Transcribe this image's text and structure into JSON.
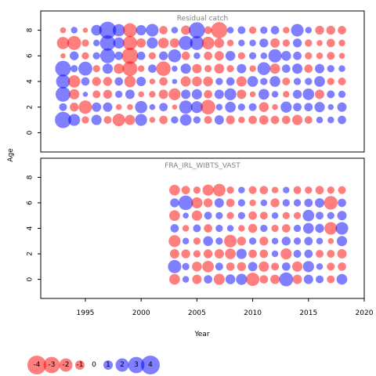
{
  "chart_data": {
    "type": "bubble",
    "xlabel": "Year",
    "ylabel": "Age",
    "xlim": [
      1991,
      2020
    ],
    "ylim": [
      -1.5,
      9.5
    ],
    "x_ticks": [
      "1995",
      "2000",
      "2005",
      "2010",
      "2015",
      "2020"
    ],
    "y_ticks": [
      "0",
      "2",
      "4",
      "6",
      "8"
    ],
    "colors": {
      "positive": "#0000ff",
      "negative": "#ff0000",
      "alpha": 0.5
    },
    "panels": [
      {
        "title": "Residual catch",
        "years": [
          1993,
          1994,
          1995,
          1996,
          1997,
          1998,
          1999,
          2000,
          2001,
          2002,
          2003,
          2004,
          2005,
          2006,
          2007,
          2008,
          2009,
          2010,
          2011,
          2012,
          2013,
          2014,
          2015,
          2016,
          2017,
          2018
        ],
        "ages": [
          1,
          2,
          3,
          4,
          5,
          6,
          7,
          8
        ],
        "residuals": [
          [
            3.0,
            1.6,
            -0.6,
            1.2,
            -0.7,
            -1.8,
            -1.2,
            1.6,
            -0.4,
            -0.8,
            0.6,
            1.5,
            0.6,
            -0.7,
            1.0,
            -0.9,
            -0.5,
            -0.8,
            -1.0,
            -0.8,
            -0.8,
            -1.2,
            -0.7,
            0.5,
            0.5,
            0.8
          ],
          [
            0.7,
            -0.9,
            -2.0,
            1.0,
            1.0,
            -0.4,
            -0.4,
            1.7,
            0.4,
            0.8,
            -0.3,
            2.0,
            1.6,
            -2.4,
            0.5,
            1.3,
            0.6,
            0.7,
            -1.1,
            -0.4,
            1.4,
            0.8,
            0.8,
            1.2,
            0.4,
            1.0
          ],
          [
            2.5,
            -1.2,
            0.3,
            -0.7,
            -0.9,
            0.6,
            1.0,
            -0.4,
            -0.5,
            -1.0,
            -1.6,
            1.0,
            1.2,
            -0.8,
            1.0,
            1.6,
            -1.0,
            -0.4,
            1.3,
            0.5,
            -0.5,
            0.9,
            1.5,
            -1.0,
            0.7,
            0.6
          ],
          [
            2.2,
            -1.7,
            0.8,
            -0.9,
            -0.9,
            0.8,
            -1.5,
            1.0,
            -0.4,
            -0.8,
            0.3,
            -1.2,
            -1.1,
            -1.1,
            0.6,
            0.8,
            -1.2,
            1.3,
            0.6,
            1.3,
            -0.7,
            0.6,
            0.6,
            1.3,
            -0.6,
            -0.7
          ],
          [
            2.8,
            0.6,
            2.2,
            -0.6,
            1.2,
            -1.2,
            -2.5,
            -0.5,
            0.8,
            -2.4,
            0.4,
            1.2,
            -1.0,
            -0.6,
            -1.1,
            -0.6,
            1.0,
            -0.5,
            1.9,
            -1.2,
            0.8,
            1.2,
            -0.8,
            1.0,
            0.6,
            0.5
          ],
          [
            -0.3,
            0.9,
            -0.6,
            0.6,
            2.5,
            0.8,
            -3.0,
            0.8,
            -0.6,
            0.9,
            1.9,
            -0.8,
            0.5,
            -0.8,
            -1.0,
            1.1,
            -0.6,
            0.6,
            0.5,
            2.0,
            1.1,
            0.8,
            -0.6,
            -0.5,
            -0.7,
            -0.4
          ],
          [
            -1.7,
            -2.2,
            -0.6,
            0.5,
            2.7,
            1.4,
            -2.3,
            -1.0,
            1.4,
            -1.3,
            -1.0,
            2.2,
            2.2,
            -1.8,
            -1.1,
            -0.5,
            0.5,
            0.5,
            0.9,
            -1.0,
            -0.6,
            0.9,
            -0.6,
            -0.4,
            -0.8,
            -0.5
          ],
          [
            -0.4,
            0.5,
            -0.3,
            1.3,
            3.3,
            1.7,
            -2.2,
            1.2,
            1.8,
            -0.8,
            0.5,
            -1.0,
            2.9,
            -0.7,
            -3.0,
            0.5,
            0.7,
            -0.6,
            0.6,
            0.8,
            -0.5,
            1.8,
            0.5,
            -0.9,
            -0.9,
            -0.8
          ]
        ]
      },
      {
        "title": "FRA_IRL_WIBTS_VAST",
        "years": [
          2003,
          2004,
          2005,
          2006,
          2007,
          2008,
          2009,
          2010,
          2011,
          2012,
          2013,
          2014,
          2015,
          2016,
          2017,
          2018
        ],
        "ages": [
          0,
          1,
          2,
          3,
          4,
          5,
          6,
          7,
          8
        ],
        "residuals": [
          [
            -1.3,
            0.5,
            -1.0,
            0.8,
            -1.4,
            1.1,
            1.4,
            -2.0,
            -0.8,
            -1.0,
            2.2,
            -1.0,
            1.0,
            0.7,
            -0.7,
            1.3
          ],
          [
            2.0,
            0.6,
            -1.1,
            -1.5,
            0.7,
            -0.8,
            -0.9,
            1.0,
            -1.2,
            -0.7,
            0.8,
            -1.2,
            1.4,
            0.5,
            -0.7,
            -0.8
          ],
          [
            -1.0,
            -0.9,
            -0.6,
            -0.9,
            -1.0,
            -1.3,
            1.2,
            -0.8,
            -0.8,
            0.5,
            -1.4,
            0.7,
            0.8,
            -0.7,
            -0.7,
            -1.0
          ],
          [
            -1.6,
            0.5,
            -0.6,
            1.1,
            0.6,
            -1.8,
            -0.9,
            0.6,
            -0.9,
            0.5,
            0.9,
            0.6,
            0.8,
            0.5,
            -0.4,
            1.2
          ],
          [
            0.8,
            -0.5,
            0.7,
            -0.8,
            0.6,
            0.5,
            -0.5,
            -0.9,
            0.6,
            -0.6,
            -0.8,
            0.6,
            1.3,
            0.9,
            -1.8,
            1.8
          ],
          [
            -1.3,
            0.4,
            -1.2,
            0.7,
            0.6,
            -0.6,
            0.6,
            -0.8,
            -0.7,
            0.5,
            -0.6,
            -0.6,
            1.5,
            0.7,
            0.6,
            1.0
          ],
          [
            0.9,
            2.4,
            -1.4,
            -0.9,
            1.0,
            -0.8,
            0.6,
            -0.5,
            0.5,
            -0.9,
            0.6,
            0.6,
            0.8,
            1.0,
            -2.1,
            0.8
          ],
          [
            -1.3,
            -0.8,
            -0.6,
            -1.4,
            -1.8,
            -0.6,
            0.5,
            -0.7,
            -0.8,
            -0.5,
            0.5,
            -0.7,
            -0.6,
            -0.8,
            -0.6,
            -0.7
          ],
          [
            0.0,
            0.0,
            0.0,
            0.0,
            0.0,
            0.0,
            0.0,
            0.0,
            0.0,
            0.0,
            0.0,
            0.0,
            0.0,
            0.0,
            0.0,
            0.0
          ]
        ]
      }
    ],
    "legend": {
      "values": [
        -4,
        -3,
        -2,
        -1,
        0,
        1,
        2,
        3,
        4
      ],
      "labels": [
        "-4",
        "-3",
        "-2",
        "-1",
        "0",
        "1",
        "2",
        "3",
        "4"
      ],
      "placement": "bottom-left"
    }
  }
}
